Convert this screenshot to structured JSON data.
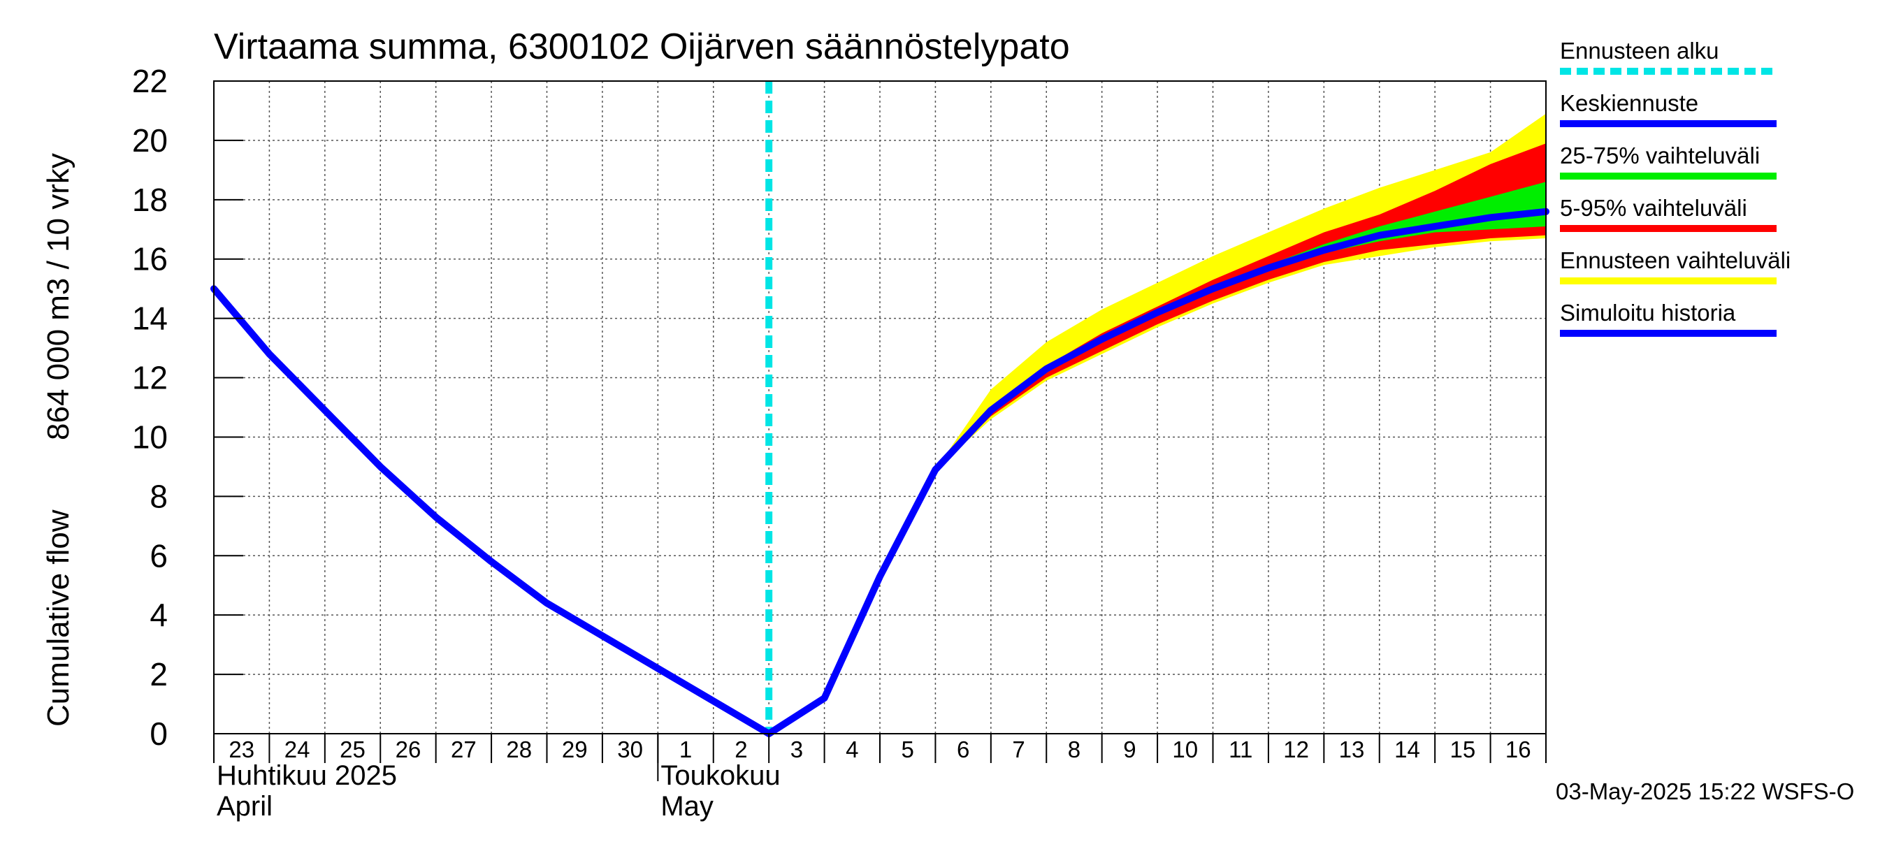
{
  "chart_data": {
    "type": "area",
    "title": "Virtaama summa, 6300102 Oijärven säännöstelypato",
    "ylabel_fi": "864 000 m3 / 10 vrky",
    "ylabel_en": "Cumulative flow",
    "ylim": [
      0,
      22
    ],
    "yticks": [
      0,
      2,
      4,
      6,
      8,
      10,
      12,
      14,
      16,
      18,
      20,
      22
    ],
    "grid": true,
    "legend_placement": "right",
    "x_start": "2025-04-23",
    "x_end": "2025-05-17",
    "x_tick_labels": [
      {
        "date": "2025-04-23",
        "label": "23"
      },
      {
        "date": "2025-04-24",
        "label": "24"
      },
      {
        "date": "2025-04-25",
        "label": "25"
      },
      {
        "date": "2025-04-26",
        "label": "26"
      },
      {
        "date": "2025-04-27",
        "label": "27"
      },
      {
        "date": "2025-04-28",
        "label": "28"
      },
      {
        "date": "2025-04-29",
        "label": "29"
      },
      {
        "date": "2025-04-30",
        "label": "30"
      },
      {
        "date": "2025-05-01",
        "label": "1"
      },
      {
        "date": "2025-05-02",
        "label": "2"
      },
      {
        "date": "2025-05-03",
        "label": "3"
      },
      {
        "date": "2025-05-04",
        "label": "4"
      },
      {
        "date": "2025-05-05",
        "label": "5"
      },
      {
        "date": "2025-05-06",
        "label": "6"
      },
      {
        "date": "2025-05-07",
        "label": "7"
      },
      {
        "date": "2025-05-08",
        "label": "8"
      },
      {
        "date": "2025-05-09",
        "label": "9"
      },
      {
        "date": "2025-05-10",
        "label": "10"
      },
      {
        "date": "2025-05-11",
        "label": "11"
      },
      {
        "date": "2025-05-12",
        "label": "12"
      },
      {
        "date": "2025-05-13",
        "label": "13"
      },
      {
        "date": "2025-05-14",
        "label": "14"
      },
      {
        "date": "2025-05-15",
        "label": "15"
      },
      {
        "date": "2025-05-16",
        "label": "16"
      }
    ],
    "months": [
      {
        "date": "2025-04-23",
        "fi": "Huhtikuu  2025",
        "en": "April"
      },
      {
        "date": "2025-05-01",
        "fi": "Toukokuu",
        "en": "May"
      }
    ],
    "forecast_start": "2025-05-03",
    "x_dates": [
      "2025-04-23",
      "2025-04-24",
      "2025-04-25",
      "2025-04-26",
      "2025-04-27",
      "2025-04-28",
      "2025-04-29",
      "2025-04-30",
      "2025-05-01",
      "2025-05-02",
      "2025-05-03",
      "2025-05-04",
      "2025-05-05",
      "2025-05-06",
      "2025-05-07",
      "2025-05-08",
      "2025-05-09",
      "2025-05-10",
      "2025-05-11",
      "2025-05-12",
      "2025-05-13",
      "2025-05-14",
      "2025-05-15",
      "2025-05-16",
      "2025-05-17"
    ],
    "series": [
      {
        "name": "Simuloitu historia",
        "color": "#0000ff",
        "values": [
          15.0,
          12.8,
          10.9,
          9.0,
          7.3,
          5.8,
          4.4,
          3.3,
          2.2,
          1.1,
          0.0,
          1.2,
          5.3,
          8.9,
          null,
          null,
          null,
          null,
          null,
          null,
          null,
          null,
          null,
          null,
          null
        ]
      },
      {
        "name": "Keskiennuste",
        "color": "#0000ff",
        "values": [
          null,
          null,
          null,
          null,
          null,
          null,
          null,
          null,
          null,
          null,
          null,
          null,
          null,
          8.9,
          10.9,
          12.3,
          13.3,
          14.2,
          15.0,
          15.7,
          16.3,
          16.8,
          17.1,
          17.4,
          17.6
        ]
      }
    ],
    "bands": [
      {
        "name": "Ennusteen vaihteluväli",
        "color": "#ffff00",
        "lower": [
          null,
          null,
          null,
          null,
          null,
          null,
          null,
          null,
          null,
          null,
          null,
          null,
          null,
          8.9,
          10.6,
          11.9,
          12.8,
          13.7,
          14.5,
          15.2,
          15.8,
          16.1,
          16.4,
          16.6,
          16.7
        ],
        "upper": [
          null,
          null,
          null,
          null,
          null,
          null,
          null,
          null,
          null,
          null,
          null,
          null,
          null,
          8.9,
          11.6,
          13.2,
          14.3,
          15.2,
          16.1,
          16.9,
          17.7,
          18.4,
          19.0,
          19.6,
          20.9
        ]
      },
      {
        "name": "5-95% vaihteluväli",
        "color": "#ff0000",
        "lower": [
          null,
          null,
          null,
          null,
          null,
          null,
          null,
          null,
          null,
          null,
          null,
          null,
          null,
          8.9,
          10.7,
          12.0,
          12.9,
          13.8,
          14.6,
          15.3,
          15.9,
          16.3,
          16.5,
          16.7,
          16.8
        ],
        "upper": [
          null,
          null,
          null,
          null,
          null,
          null,
          null,
          null,
          null,
          null,
          null,
          null,
          null,
          8.9,
          11.0,
          12.4,
          13.5,
          14.4,
          15.3,
          16.1,
          16.9,
          17.5,
          18.3,
          19.2,
          19.9
        ]
      },
      {
        "name": "25-75% vaihteluväli",
        "color": "#00ee00",
        "lower": [
          null,
          null,
          null,
          null,
          null,
          null,
          null,
          null,
          null,
          null,
          null,
          null,
          null,
          8.9,
          10.8,
          12.2,
          13.2,
          14.1,
          14.9,
          15.6,
          16.2,
          16.6,
          16.9,
          17.0,
          17.1
        ],
        "upper": [
          null,
          null,
          null,
          null,
          null,
          null,
          null,
          null,
          null,
          null,
          null,
          null,
          null,
          8.9,
          10.9,
          12.3,
          13.4,
          14.3,
          15.1,
          15.8,
          16.5,
          17.1,
          17.6,
          18.1,
          18.6
        ]
      }
    ],
    "legend": [
      {
        "label": "Ennusteen alku",
        "color": "#00e5e5",
        "style": "dashed"
      },
      {
        "label": "Keskiennuste",
        "color": "#0000ff",
        "style": "solid"
      },
      {
        "label": "25-75% vaihteluväli",
        "color": "#00ee00",
        "style": "solid"
      },
      {
        "label": "5-95% vaihteluväli",
        "color": "#ff0000",
        "style": "solid"
      },
      {
        "label": "Ennusteen vaihteluväli",
        "color": "#ffff00",
        "style": "solid"
      },
      {
        "label": "Simuloitu historia",
        "color": "#0000ff",
        "style": "solid"
      }
    ]
  },
  "footer": "03-May-2025 15:22 WSFS-O"
}
